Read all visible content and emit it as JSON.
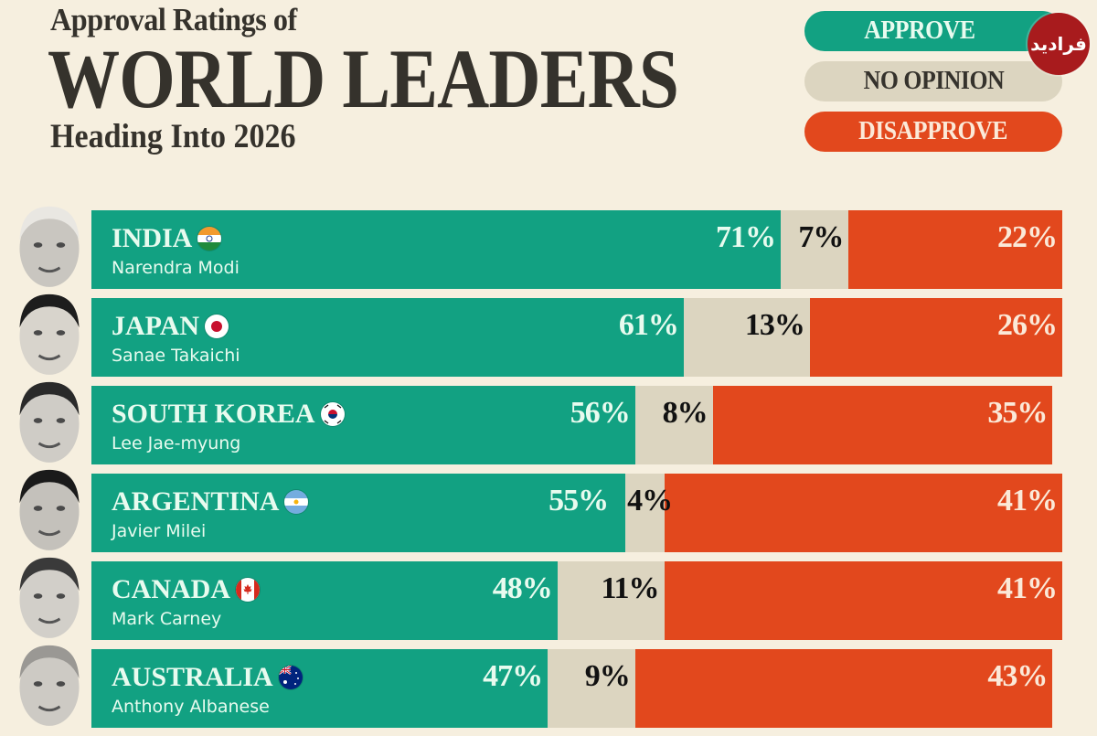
{
  "header": {
    "title_line1": "Approval Ratings of",
    "title_line2": "WORLD LEADERS",
    "title_line3": "Heading Into 2026"
  },
  "legend": {
    "approve": "APPROVE",
    "no_opinion": "NO OPINION",
    "disapprove": "DISAPPROVE"
  },
  "watermark": {
    "text": "فرادید",
    "icon": "faradeed-logo-icon"
  },
  "colors": {
    "approve": "#12a182",
    "no_opinion": "#dcd5c0",
    "disapprove": "#e2481d",
    "background": "#f6efdf",
    "title": "#35322c"
  },
  "chart_data": {
    "type": "bar",
    "orientation": "horizontal-stacked-100",
    "title": "Approval Ratings of WORLD LEADERS Heading Into 2026",
    "legend_position": "top-right",
    "unit": "%",
    "categories": [
      "INDIA",
      "JAPAN",
      "SOUTH KOREA",
      "ARGENTINA",
      "CANADA",
      "AUSTRALIA"
    ],
    "leaders": [
      "Narendra Modi",
      "Sanae Takaichi",
      "Lee Jae-myung",
      "Javier Milei",
      "Mark Carney",
      "Anthony Albanese"
    ],
    "flags": [
      "india-flag-icon",
      "japan-flag-icon",
      "south-korea-flag-icon",
      "argentina-flag-icon",
      "canada-flag-icon",
      "australia-flag-icon"
    ],
    "series": [
      {
        "name": "APPROVE",
        "values": [
          71,
          61,
          56,
          55,
          48,
          47
        ]
      },
      {
        "name": "NO OPINION",
        "values": [
          7,
          13,
          8,
          4,
          11,
          9
        ]
      },
      {
        "name": "DISAPPROVE",
        "values": [
          22,
          26,
          35,
          41,
          41,
          43
        ]
      }
    ],
    "labels": {
      "approve": [
        "71%",
        "61%",
        "56%",
        "55%",
        "48%",
        "47%"
      ],
      "no_opinion": [
        "7%",
        "13%",
        "8%",
        "4%",
        "11%",
        "9%"
      ],
      "disapprove": [
        "22%",
        "26%",
        "35%",
        "41%",
        "41%",
        "43%"
      ]
    },
    "xlim": [
      0,
      100
    ]
  }
}
